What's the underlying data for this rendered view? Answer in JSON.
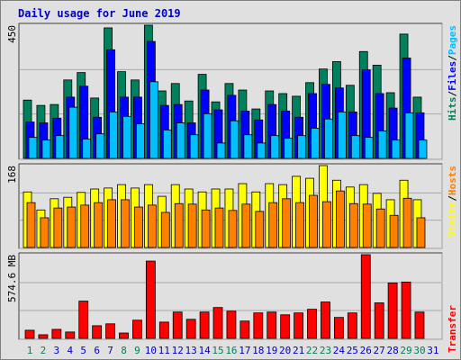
{
  "chart_data": [
    {
      "type": "bar",
      "title": "Daily usage for June 2019",
      "ylim": [
        0,
        450
      ],
      "yticks": [
        450
      ],
      "series": [
        {
          "name": "Hits",
          "color": "#00805c",
          "values": [
            197,
            179,
            182,
            265,
            290,
            204,
            441,
            293,
            265,
            450,
            228,
            253,
            194,
            284,
            191,
            253,
            231,
            167,
            228,
            219,
            210,
            256,
            302,
            327,
            247,
            361,
            315,
            222,
            420,
            207,
            null
          ]
        },
        {
          "name": "Files",
          "color": "#0000ff",
          "values": [
            123,
            120,
            136,
            207,
            244,
            139,
            367,
            207,
            207,
            395,
            179,
            182,
            120,
            231,
            164,
            213,
            160,
            130,
            182,
            160,
            139,
            219,
            250,
            238,
            157,
            299,
            219,
            170,
            339,
            154,
            null
          ]
        },
        {
          "name": "Pages",
          "color": "#00c0ff",
          "values": [
            71,
            62,
            77,
            173,
            65,
            83,
            157,
            142,
            117,
            259,
            96,
            120,
            80,
            151,
            52,
            127,
            80,
            52,
            77,
            68,
            77,
            102,
            133,
            157,
            77,
            71,
            93,
            62,
            154,
            62,
            null
          ]
        }
      ]
    },
    {
      "type": "bar",
      "ylim": [
        0,
        168
      ],
      "yticks": [
        168
      ],
      "series": [
        {
          "name": "Visits",
          "color": "#ffff00",
          "values": [
            114,
            77,
            100,
            103,
            113,
            120,
            122,
            129,
            122,
            129,
            105,
            129,
            120,
            114,
            120,
            120,
            131,
            114,
            131,
            129,
            146,
            142,
            168,
            138,
            124,
            129,
            111,
            98,
            138,
            98,
            null
          ]
        },
        {
          "name": "Hosts",
          "color": "#ff8000",
          "values": [
            92,
            61,
            81,
            83,
            87,
            92,
            98,
            98,
            83,
            87,
            72,
            90,
            89,
            77,
            81,
            76,
            89,
            74,
            92,
            100,
            92,
            107,
            94,
            116,
            90,
            89,
            79,
            66,
            101,
            61,
            null
          ]
        }
      ]
    },
    {
      "type": "bar",
      "ylim": [
        0,
        574.6
      ],
      "yticks": [
        {
          "value": 574.6,
          "label": "574.6 MB"
        }
      ],
      "categories": [
        "1",
        "2",
        "3",
        "4",
        "5",
        "6",
        "7",
        "8",
        "9",
        "10",
        "11",
        "12",
        "13",
        "14",
        "15",
        "16",
        "17",
        "18",
        "19",
        "20",
        "21",
        "22",
        "23",
        "24",
        "25",
        "26",
        "27",
        "28",
        "29",
        "30",
        "31"
      ],
      "category_colors": [
        "#00805c",
        "#00805c",
        "#0000c0",
        "#0000c0",
        "#0000c0",
        "#0000c0",
        "#0000c0",
        "#00805c",
        "#00805c",
        "#0000c0",
        "#0000c0",
        "#0000c0",
        "#0000c0",
        "#0000c0",
        "#00805c",
        "#00805c",
        "#0000c0",
        "#0000c0",
        "#0000c0",
        "#0000c0",
        "#0000c0",
        "#00805c",
        "#00805c",
        "#0000c0",
        "#0000c0",
        "#0000c0",
        "#0000c0",
        "#0000c0",
        "#00805c",
        "#00805c",
        "#0000c0"
      ],
      "series": [
        {
          "name": "Transfer",
          "color": "#ff0000",
          "values": [
            56,
            25,
            62,
            44,
            256,
            87,
            100,
            37,
            125,
            531,
            112,
            181,
            131,
            181,
            212,
            187,
            119,
            175,
            181,
            162,
            175,
            200,
            250,
            144,
            175,
            574.6,
            244,
            381,
            387,
            181,
            null
          ]
        }
      ]
    }
  ]
}
